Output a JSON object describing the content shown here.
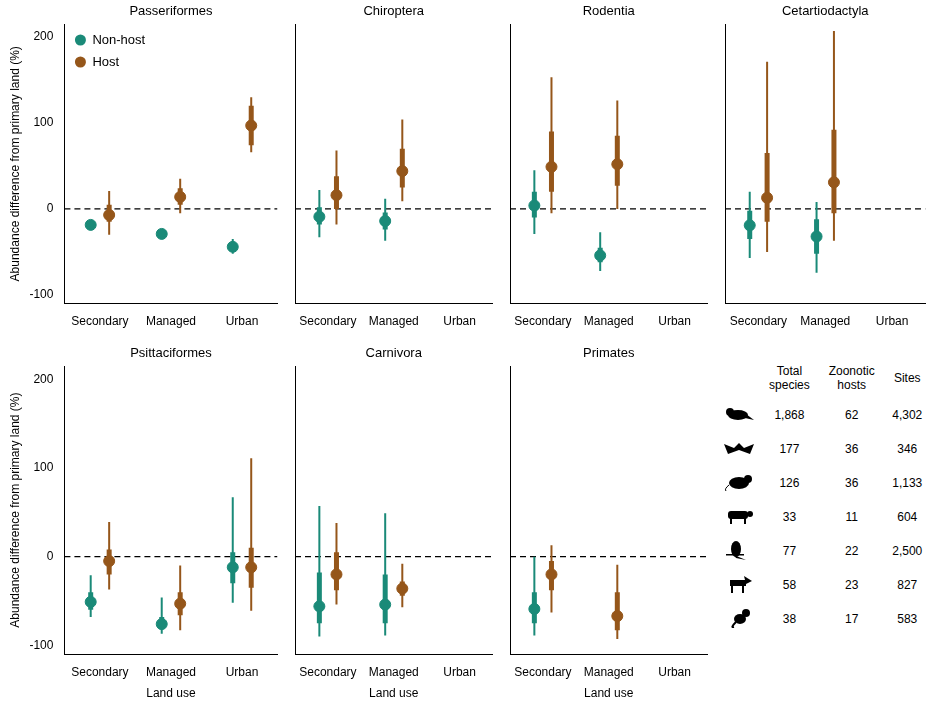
{
  "chart_data": [
    {
      "type": "scatter",
      "title": "Passeriformes",
      "categories": [
        "Secondary",
        "Managed",
        "Urban"
      ],
      "ylabel": "Abundance difference from primary land (%)",
      "ylim": [
        -110,
        215
      ],
      "yticks": [
        -100,
        0,
        100,
        200
      ],
      "reference_line": 0,
      "grid": false,
      "legend": "upper left",
      "series": [
        {
          "name": "Non-host",
          "color": "#1a8a78",
          "marker": "circle",
          "values": [
            -18.5,
            -29,
            -44
          ],
          "error_bars": [
            [
              -20,
              -17
            ],
            [
              -31,
              -27
            ],
            [
              -52,
              -35
            ]
          ],
          "error_bars_inner": [
            [
              -19.5,
              -17.5
            ],
            [
              -30,
              -28
            ],
            [
              -48,
              -40
            ]
          ]
        },
        {
          "name": "Host",
          "color": "#95561a",
          "marker": "circle",
          "values": [
            -7,
            14,
            97
          ],
          "error_bars": [
            [
              -30,
              21
            ],
            [
              -5,
              35
            ],
            [
              66,
              130
            ]
          ],
          "error_bars_inner": [
            [
              -15,
              5
            ],
            [
              5,
              24
            ],
            [
              74,
              120
            ]
          ]
        }
      ]
    },
    {
      "type": "scatter",
      "title": "Chiroptera",
      "categories": [
        "Secondary",
        "Managed",
        "Urban"
      ],
      "ylim": [
        -110,
        215
      ],
      "yticks": [
        -100,
        0,
        100,
        200
      ],
      "reference_line": 0,
      "grid": false,
      "tick_labels": "x",
      "series": [
        {
          "name": "Non-host",
          "color": "#1a8a78",
          "marker": "circle",
          "values": [
            -9,
            -14,
            null
          ],
          "error_bars": [
            [
              -33,
              22
            ],
            [
              -37,
              12
            ],
            null
          ],
          "error_bars_inner": [
            [
              -18,
              2
            ],
            [
              -24,
              -4
            ],
            null
          ]
        },
        {
          "name": "Host",
          "color": "#95561a",
          "marker": "circle",
          "values": [
            16,
            44,
            null
          ],
          "error_bars": [
            [
              -18,
              68
            ],
            [
              9,
              104
            ],
            null
          ],
          "error_bars_inner": [
            [
              0,
              38
            ],
            [
              25,
              70
            ],
            null
          ]
        }
      ]
    },
    {
      "type": "scatter",
      "title": "Rodentia",
      "categories": [
        "Secondary",
        "Managed",
        "Urban"
      ],
      "ylim": [
        -110,
        215
      ],
      "yticks": [
        -100,
        0,
        100,
        200
      ],
      "reference_line": 0,
      "grid": false,
      "tick_labels": "x",
      "series": [
        {
          "name": "Non-host",
          "color": "#1a8a78",
          "marker": "circle",
          "values": [
            4,
            -54,
            null
          ],
          "error_bars": [
            [
              -29,
              45
            ],
            [
              -72,
              -27
            ],
            null
          ],
          "error_bars_inner": [
            [
              -10,
              20
            ],
            [
              -62,
              -45
            ],
            null
          ]
        },
        {
          "name": "Host",
          "color": "#95561a",
          "marker": "circle",
          "values": [
            49,
            52,
            null
          ],
          "error_bars": [
            [
              -5,
              153
            ],
            [
              0,
              126
            ],
            null
          ],
          "error_bars_inner": [
            [
              20,
              90
            ],
            [
              27,
              85
            ],
            null
          ]
        }
      ]
    },
    {
      "type": "scatter",
      "title": "Cetartiodactyla",
      "categories": [
        "Secondary",
        "Managed",
        "Urban"
      ],
      "ylim": [
        -110,
        215
      ],
      "yticks": [
        -100,
        0,
        100,
        200
      ],
      "reference_line": 0,
      "grid": false,
      "tick_labels": "x",
      "series": [
        {
          "name": "Non-host",
          "color": "#1a8a78",
          "marker": "circle",
          "values": [
            -19,
            -32,
            null
          ],
          "error_bars": [
            [
              -57,
              20
            ],
            [
              -74,
              8
            ],
            null
          ],
          "error_bars_inner": [
            [
              -35,
              -2
            ],
            [
              -52,
              -12
            ],
            null
          ]
        },
        {
          "name": "Host",
          "color": "#95561a",
          "marker": "circle",
          "values": [
            13,
            31,
            null
          ],
          "error_bars": [
            [
              -50,
              171
            ],
            [
              -37,
              207
            ],
            null
          ],
          "error_bars_inner": [
            [
              -15,
              65
            ],
            [
              -5,
              92
            ],
            null
          ]
        }
      ]
    },
    {
      "type": "scatter",
      "title": "Psittaciformes",
      "categories": [
        "Secondary",
        "Managed",
        "Urban"
      ],
      "xlabel": "Land use",
      "ylabel": "Abundance difference from primary land (%)",
      "ylim": [
        -110,
        215
      ],
      "yticks": [
        -100,
        0,
        100,
        200
      ],
      "reference_line": 0,
      "grid": false,
      "series": [
        {
          "name": "Non-host",
          "color": "#1a8a78",
          "marker": "circle",
          "values": [
            -51,
            -76,
            -12
          ],
          "error_bars": [
            [
              -68,
              -21
            ],
            [
              -87,
              -46
            ],
            [
              -52,
              67
            ]
          ],
          "error_bars_inner": [
            [
              -60,
              -40
            ],
            [
              -82,
              -68
            ],
            [
              -30,
              5
            ]
          ]
        },
        {
          "name": "Host",
          "color": "#95561a",
          "marker": "circle",
          "values": [
            -5,
            -53,
            -12
          ],
          "error_bars": [
            [
              -37,
              39
            ],
            [
              -83,
              -10
            ],
            [
              -61,
              111
            ]
          ],
          "error_bars_inner": [
            [
              -20,
              8
            ],
            [
              -66,
              -40
            ],
            [
              -35,
              10
            ]
          ]
        }
      ]
    },
    {
      "type": "scatter",
      "title": "Carnivora",
      "categories": [
        "Secondary",
        "Managed",
        "Urban"
      ],
      "xlabel": "Land use",
      "ylim": [
        -110,
        215
      ],
      "yticks": [
        -100,
        0,
        100,
        200
      ],
      "reference_line": 0,
      "grid": false,
      "tick_labels": "x",
      "series": [
        {
          "name": "Non-host",
          "color": "#1a8a78",
          "marker": "circle",
          "values": [
            -56,
            -54,
            null
          ],
          "error_bars": [
            [
              -90,
              57
            ],
            [
              -89,
              49
            ],
            null
          ],
          "error_bars_inner": [
            [
              -75,
              -18
            ],
            [
              -75,
              -20
            ],
            null
          ]
        },
        {
          "name": "Host",
          "color": "#95561a",
          "marker": "circle",
          "values": [
            -20,
            -36,
            null
          ],
          "error_bars": [
            [
              -54,
              38
            ],
            [
              -57,
              -8
            ],
            null
          ],
          "error_bars_inner": [
            [
              -38,
              5
            ],
            [
              -44,
              -28
            ],
            null
          ]
        }
      ]
    },
    {
      "type": "scatter",
      "title": "Primates",
      "categories": [
        "Secondary",
        "Managed",
        "Urban"
      ],
      "xlabel": "Land use",
      "ylim": [
        -110,
        215
      ],
      "yticks": [
        -100,
        0,
        100,
        200
      ],
      "reference_line": 0,
      "grid": false,
      "tick_labels": "x",
      "series": [
        {
          "name": "Non-host",
          "color": "#1a8a78",
          "marker": "circle",
          "values": [
            -59,
            null,
            null
          ],
          "error_bars": [
            [
              -89,
              0
            ],
            null,
            null
          ],
          "error_bars_inner": [
            [
              -75,
              -40
            ],
            null,
            null
          ]
        },
        {
          "name": "Host",
          "color": "#95561a",
          "marker": "circle",
          "values": [
            -20,
            -67,
            null
          ],
          "error_bars": [
            [
              -63,
              13
            ],
            [
              -93,
              -9
            ],
            null
          ],
          "error_bars_inner": [
            [
              -38,
              -5
            ],
            [
              -83,
              -40
            ],
            null
          ]
        }
      ]
    }
  ],
  "table": {
    "header": [
      "Total species",
      "Zoonotic hosts",
      "Sites"
    ],
    "rows": [
      [
        "1,868",
        "62",
        "4,302"
      ],
      [
        "177",
        "36",
        "346"
      ],
      [
        "126",
        "36",
        "1,133"
      ],
      [
        "33",
        "11",
        "604"
      ],
      [
        "77",
        "22",
        "2,500"
      ],
      [
        "58",
        "23",
        "827"
      ],
      [
        "38",
        "17",
        "583"
      ]
    ]
  }
}
